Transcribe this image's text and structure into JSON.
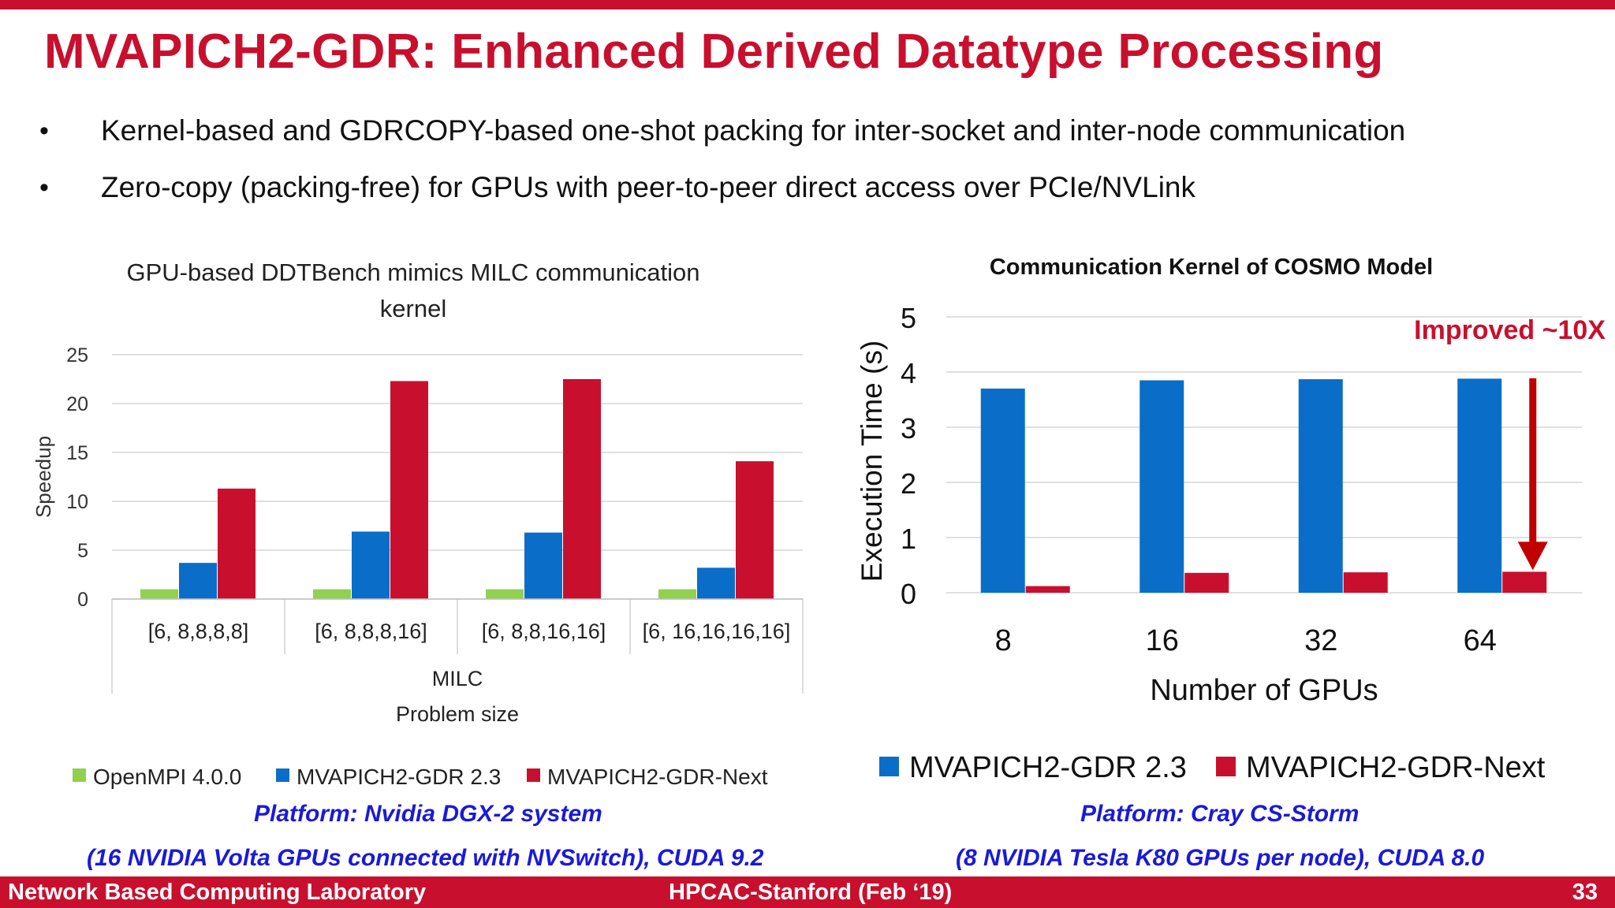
{
  "slide": {
    "title": "MVAPICH2-GDR: Enhanced Derived Datatype Processing",
    "bullets": [
      "Kernel-based and GDRCOPY-based one-shot packing for inter-socket and inter-node communication",
      "Zero-copy (packing-free) for GPUs with peer-to-peer direct access over PCIe/NVLink"
    ],
    "bullet_glyph": "•"
  },
  "left_platform": {
    "line1": "Platform: Nvidia DGX-2 system",
    "line2": "(16 NVIDIA Volta GPUs connected with NVSwitch), CUDA 9.2"
  },
  "right_platform": {
    "line1": "Platform: Cray CS-Storm",
    "line2": "(8 NVIDIA Tesla K80 GPUs per node), CUDA 8.0"
  },
  "footer": {
    "left": "Network Based Computing Laboratory",
    "center": "HPCAC-Stanford (Feb ‘19)",
    "page": "33"
  },
  "colors": {
    "accent_red": "#c8102e",
    "bar_red": "#c8102e",
    "bar_blue": "#0a6ec9",
    "bar_green": "#92d050",
    "platform_blue": "#1a1ad8"
  },
  "chart_data": [
    {
      "type": "bar",
      "title_lines": [
        "GPU-based DDTBench mimics MILC communication",
        "kernel"
      ],
      "xlabel_group": "MILC",
      "xlabel": "Problem size",
      "ylabel": "Speedup",
      "ylim": [
        0,
        25
      ],
      "yticks": [
        0,
        5,
        10,
        15,
        20,
        25
      ],
      "grid": true,
      "legend_position": "bottom",
      "categories": [
        "[6, 8,8,8,8]",
        "[6, 8,8,8,16]",
        "[6, 8,8,16,16]",
        "[6, 16,16,16,16]"
      ],
      "series": [
        {
          "name": "OpenMPI 4.0.0",
          "color": "#92d050",
          "values": [
            1,
            1,
            1,
            1
          ]
        },
        {
          "name": "MVAPICH2-GDR 2.3",
          "color": "#0a6ec9",
          "values": [
            3.7,
            6.9,
            6.8,
            3.2
          ]
        },
        {
          "name": "MVAPICH2-GDR-Next",
          "color": "#c8102e",
          "values": [
            11.3,
            22.3,
            22.5,
            14.1
          ]
        }
      ]
    },
    {
      "type": "bar",
      "title": "Communication Kernel of COSMO Model",
      "xlabel": "Number of GPUs",
      "ylabel": "Execution Time (s)",
      "ylim": [
        0,
        5
      ],
      "yticks": [
        0,
        1,
        2,
        3,
        4,
        5
      ],
      "grid": true,
      "legend_position": "bottom",
      "categories": [
        "8",
        "16",
        "32",
        "64"
      ],
      "series": [
        {
          "name": "MVAPICH2-GDR 2.3",
          "color": "#0a6ec9",
          "values": [
            3.7,
            3.85,
            3.87,
            3.88
          ]
        },
        {
          "name": "MVAPICH2-GDR-Next",
          "color": "#c8102e",
          "values": [
            0.12,
            0.36,
            0.37,
            0.38
          ]
        }
      ],
      "annotation": "Improved ~10X"
    }
  ]
}
